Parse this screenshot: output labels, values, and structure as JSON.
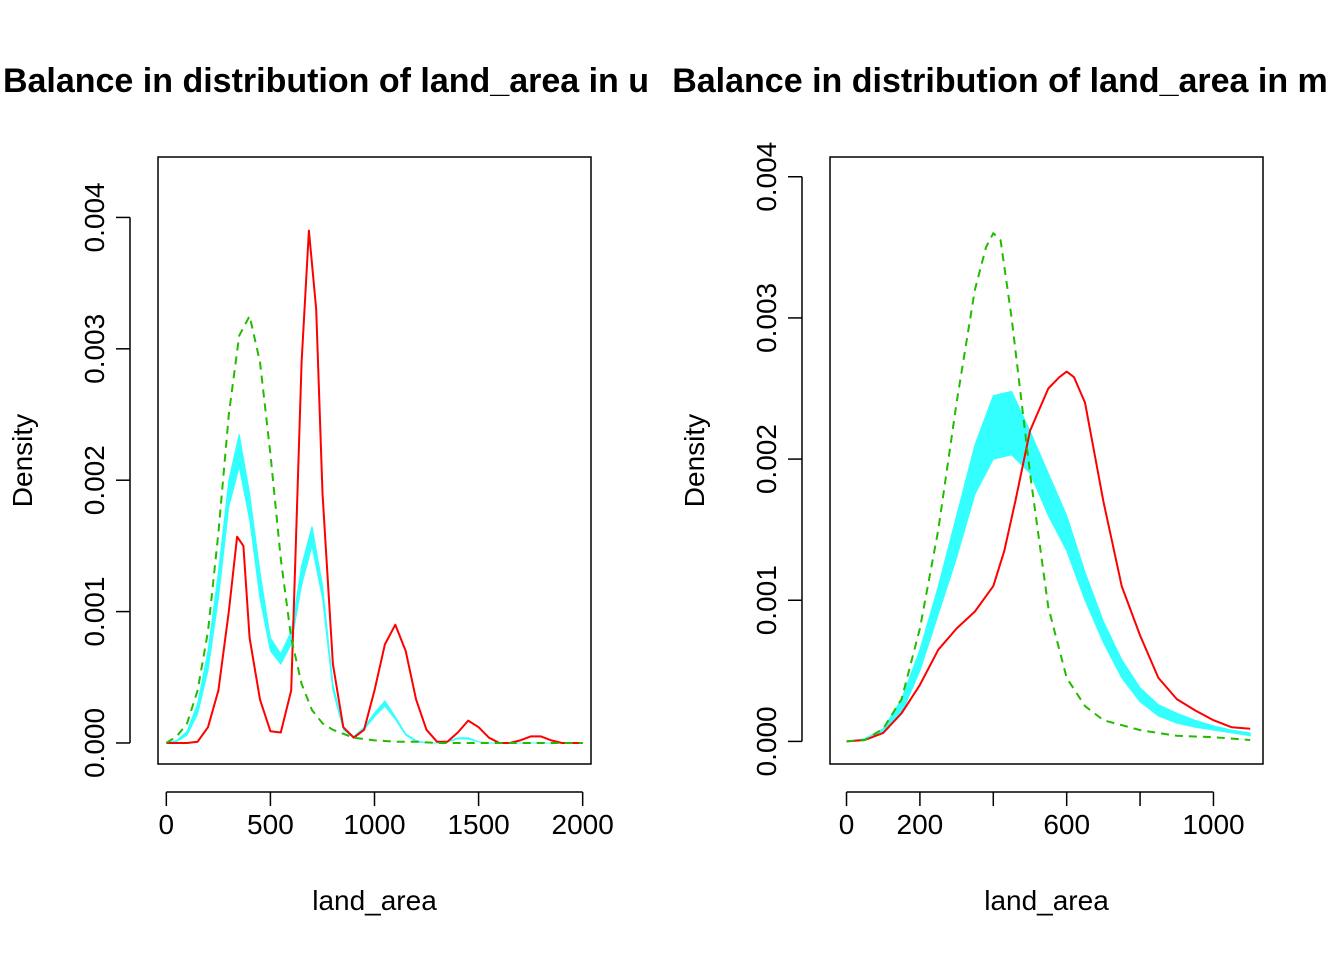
{
  "chart_data": [
    {
      "type": "line",
      "title": "Balance in distribution of land_area in u",
      "xlabel": "land_area",
      "ylabel": "Density",
      "xlim": [
        -40,
        2040
      ],
      "ylim": [
        -0.00016,
        0.00446
      ],
      "xticks": [
        0,
        500,
        1000,
        1500,
        2000
      ],
      "xtick_labels": [
        "0",
        "500",
        "1000",
        "1500",
        "2000"
      ],
      "yticks": [
        0,
        0.001,
        0.002,
        0.003,
        0.004
      ],
      "ytick_labels": [
        "0.000",
        "0.001",
        "0.002",
        "0.003",
        "0.004"
      ],
      "series": [
        {
          "color": "#FF0000",
          "dash": "solid",
          "x": [
            0,
            50,
            100,
            150,
            200,
            250,
            300,
            340,
            370,
            400,
            450,
            500,
            550,
            600,
            650,
            685,
            720,
            750,
            800,
            850,
            900,
            950,
            1000,
            1050,
            1100,
            1150,
            1200,
            1250,
            1300,
            1350,
            1400,
            1450,
            1500,
            1550,
            1600,
            1650,
            1700,
            1750,
            1800,
            1850,
            1900,
            1950,
            2000
          ],
          "y": [
            0,
            0,
            0,
            1e-05,
            0.00012,
            0.0004,
            0.001,
            0.00157,
            0.0015,
            0.0008,
            0.00033,
            9e-05,
            8e-05,
            0.0004,
            0.0029,
            0.0039,
            0.0033,
            0.0019,
            0.0006,
            0.00012,
            4e-05,
            0.0001,
            0.0004,
            0.00075,
            0.0009,
            0.0007,
            0.00033,
            0.0001,
            1e-05,
            1e-05,
            8e-05,
            0.00017,
            0.00012,
            4e-05,
            0,
            0,
            2e-05,
            5e-05,
            5e-05,
            2e-05,
            0,
            0,
            0
          ]
        },
        {
          "color": "#22BB00",
          "dash": "dashed",
          "x": [
            0,
            50,
            100,
            150,
            200,
            250,
            300,
            350,
            400,
            450,
            500,
            550,
            600,
            650,
            700,
            750,
            800,
            900,
            1000,
            1100,
            1200,
            1300,
            1400,
            1500,
            1600,
            1700,
            1800,
            1900,
            2000
          ],
          "y": [
            0,
            5e-05,
            0.00015,
            0.0004,
            0.00085,
            0.0016,
            0.0025,
            0.0031,
            0.00325,
            0.0029,
            0.0022,
            0.0014,
            0.0008,
            0.00045,
            0.00025,
            0.00015,
            0.0001,
            4e-05,
            2e-05,
            1e-05,
            1e-05,
            0,
            0,
            0,
            0,
            0,
            0,
            0,
            0
          ]
        }
      ],
      "band": {
        "color": "#33FFFF",
        "x": [
          0,
          50,
          100,
          150,
          200,
          250,
          300,
          350,
          400,
          450,
          500,
          550,
          600,
          650,
          700,
          750,
          800,
          850,
          900,
          950,
          1000,
          1050,
          1100,
          1150,
          1200,
          1250,
          1300,
          1350,
          1400,
          1450,
          1500,
          1550,
          1600,
          2000
        ],
        "lower": [
          0,
          1e-05,
          6e-05,
          0.00022,
          0.00055,
          0.0011,
          0.0018,
          0.0021,
          0.0017,
          0.0011,
          0.0007,
          0.0006,
          0.00075,
          0.0012,
          0.0015,
          0.0011,
          0.0004,
          0.0001,
          4e-05,
          0.0001,
          0.0002,
          0.00028,
          0.00018,
          6e-05,
          1e-05,
          0,
          0,
          1e-05,
          3e-05,
          3e-05,
          1e-05,
          0,
          0,
          0
        ],
        "upper": [
          0,
          2e-05,
          9e-05,
          0.0003,
          0.0007,
          0.0013,
          0.002,
          0.00235,
          0.0019,
          0.0013,
          0.0008,
          0.00068,
          0.00085,
          0.00135,
          0.00165,
          0.0012,
          0.00045,
          0.00012,
          5e-05,
          0.00012,
          0.00023,
          0.00032,
          0.0002,
          7e-05,
          2e-05,
          0,
          0,
          1e-05,
          4e-05,
          4e-05,
          1e-05,
          0,
          0,
          0
        ]
      }
    },
    {
      "type": "line",
      "title": "Balance in distribution of land_area in m",
      "xlabel": "land_area",
      "ylabel": "Density",
      "xlim": [
        -45,
        1135
      ],
      "ylim": [
        -0.00016,
        0.00414
      ],
      "xticks": [
        0,
        200,
        400,
        600,
        800,
        1000
      ],
      "xtick_labels": [
        "0",
        "200",
        "",
        "600",
        "",
        "1000"
      ],
      "yticks": [
        0,
        0.001,
        0.002,
        0.003,
        0.004
      ],
      "ytick_labels": [
        "0.000",
        "0.001",
        "0.002",
        "0.003",
        "0.004"
      ],
      "series": [
        {
          "color": "#FF0000",
          "dash": "solid",
          "x": [
            0,
            50,
            100,
            150,
            200,
            250,
            300,
            350,
            400,
            430,
            460,
            500,
            550,
            580,
            600,
            620,
            650,
            700,
            750,
            800,
            850,
            900,
            950,
            1000,
            1050,
            1100
          ],
          "y": [
            0,
            1e-05,
            6e-05,
            0.0002,
            0.0004,
            0.00065,
            0.0008,
            0.00092,
            0.0011,
            0.00135,
            0.0017,
            0.0022,
            0.0025,
            0.00258,
            0.00262,
            0.00258,
            0.0024,
            0.0017,
            0.0011,
            0.00075,
            0.00045,
            0.0003,
            0.00022,
            0.00015,
            0.0001,
            9e-05
          ]
        },
        {
          "color": "#22BB00",
          "dash": "dashed",
          "x": [
            0,
            50,
            100,
            150,
            200,
            250,
            300,
            350,
            380,
            400,
            420,
            450,
            500,
            550,
            600,
            650,
            700,
            800,
            900,
            1000,
            1100
          ],
          "y": [
            0,
            1e-05,
            9e-05,
            0.0003,
            0.0008,
            0.0015,
            0.0024,
            0.0032,
            0.0035,
            0.0036,
            0.00355,
            0.003,
            0.0019,
            0.00095,
            0.00045,
            0.00025,
            0.00015,
            8e-05,
            4e-05,
            3e-05,
            1e-05
          ]
        }
      ],
      "band": {
        "color": "#33FFFF",
        "x": [
          0,
          50,
          100,
          150,
          200,
          250,
          300,
          350,
          400,
          450,
          500,
          550,
          600,
          650,
          700,
          750,
          800,
          850,
          900,
          950,
          1000,
          1050,
          1100
        ],
        "lower": [
          0,
          1e-05,
          6e-05,
          0.0002,
          0.0005,
          0.0009,
          0.0013,
          0.00175,
          0.002,
          0.00203,
          0.0019,
          0.0016,
          0.00135,
          0.001,
          0.0007,
          0.00045,
          0.00028,
          0.00018,
          0.00013,
          0.0001,
          8e-05,
          6e-05,
          4e-05
        ],
        "upper": [
          0,
          2e-05,
          9e-05,
          0.0003,
          0.00065,
          0.0011,
          0.0016,
          0.0021,
          0.00245,
          0.00248,
          0.0022,
          0.0019,
          0.0016,
          0.0012,
          0.00085,
          0.00058,
          0.00038,
          0.00026,
          0.0002,
          0.00015,
          0.00011,
          8e-05,
          6e-05
        ]
      }
    }
  ]
}
